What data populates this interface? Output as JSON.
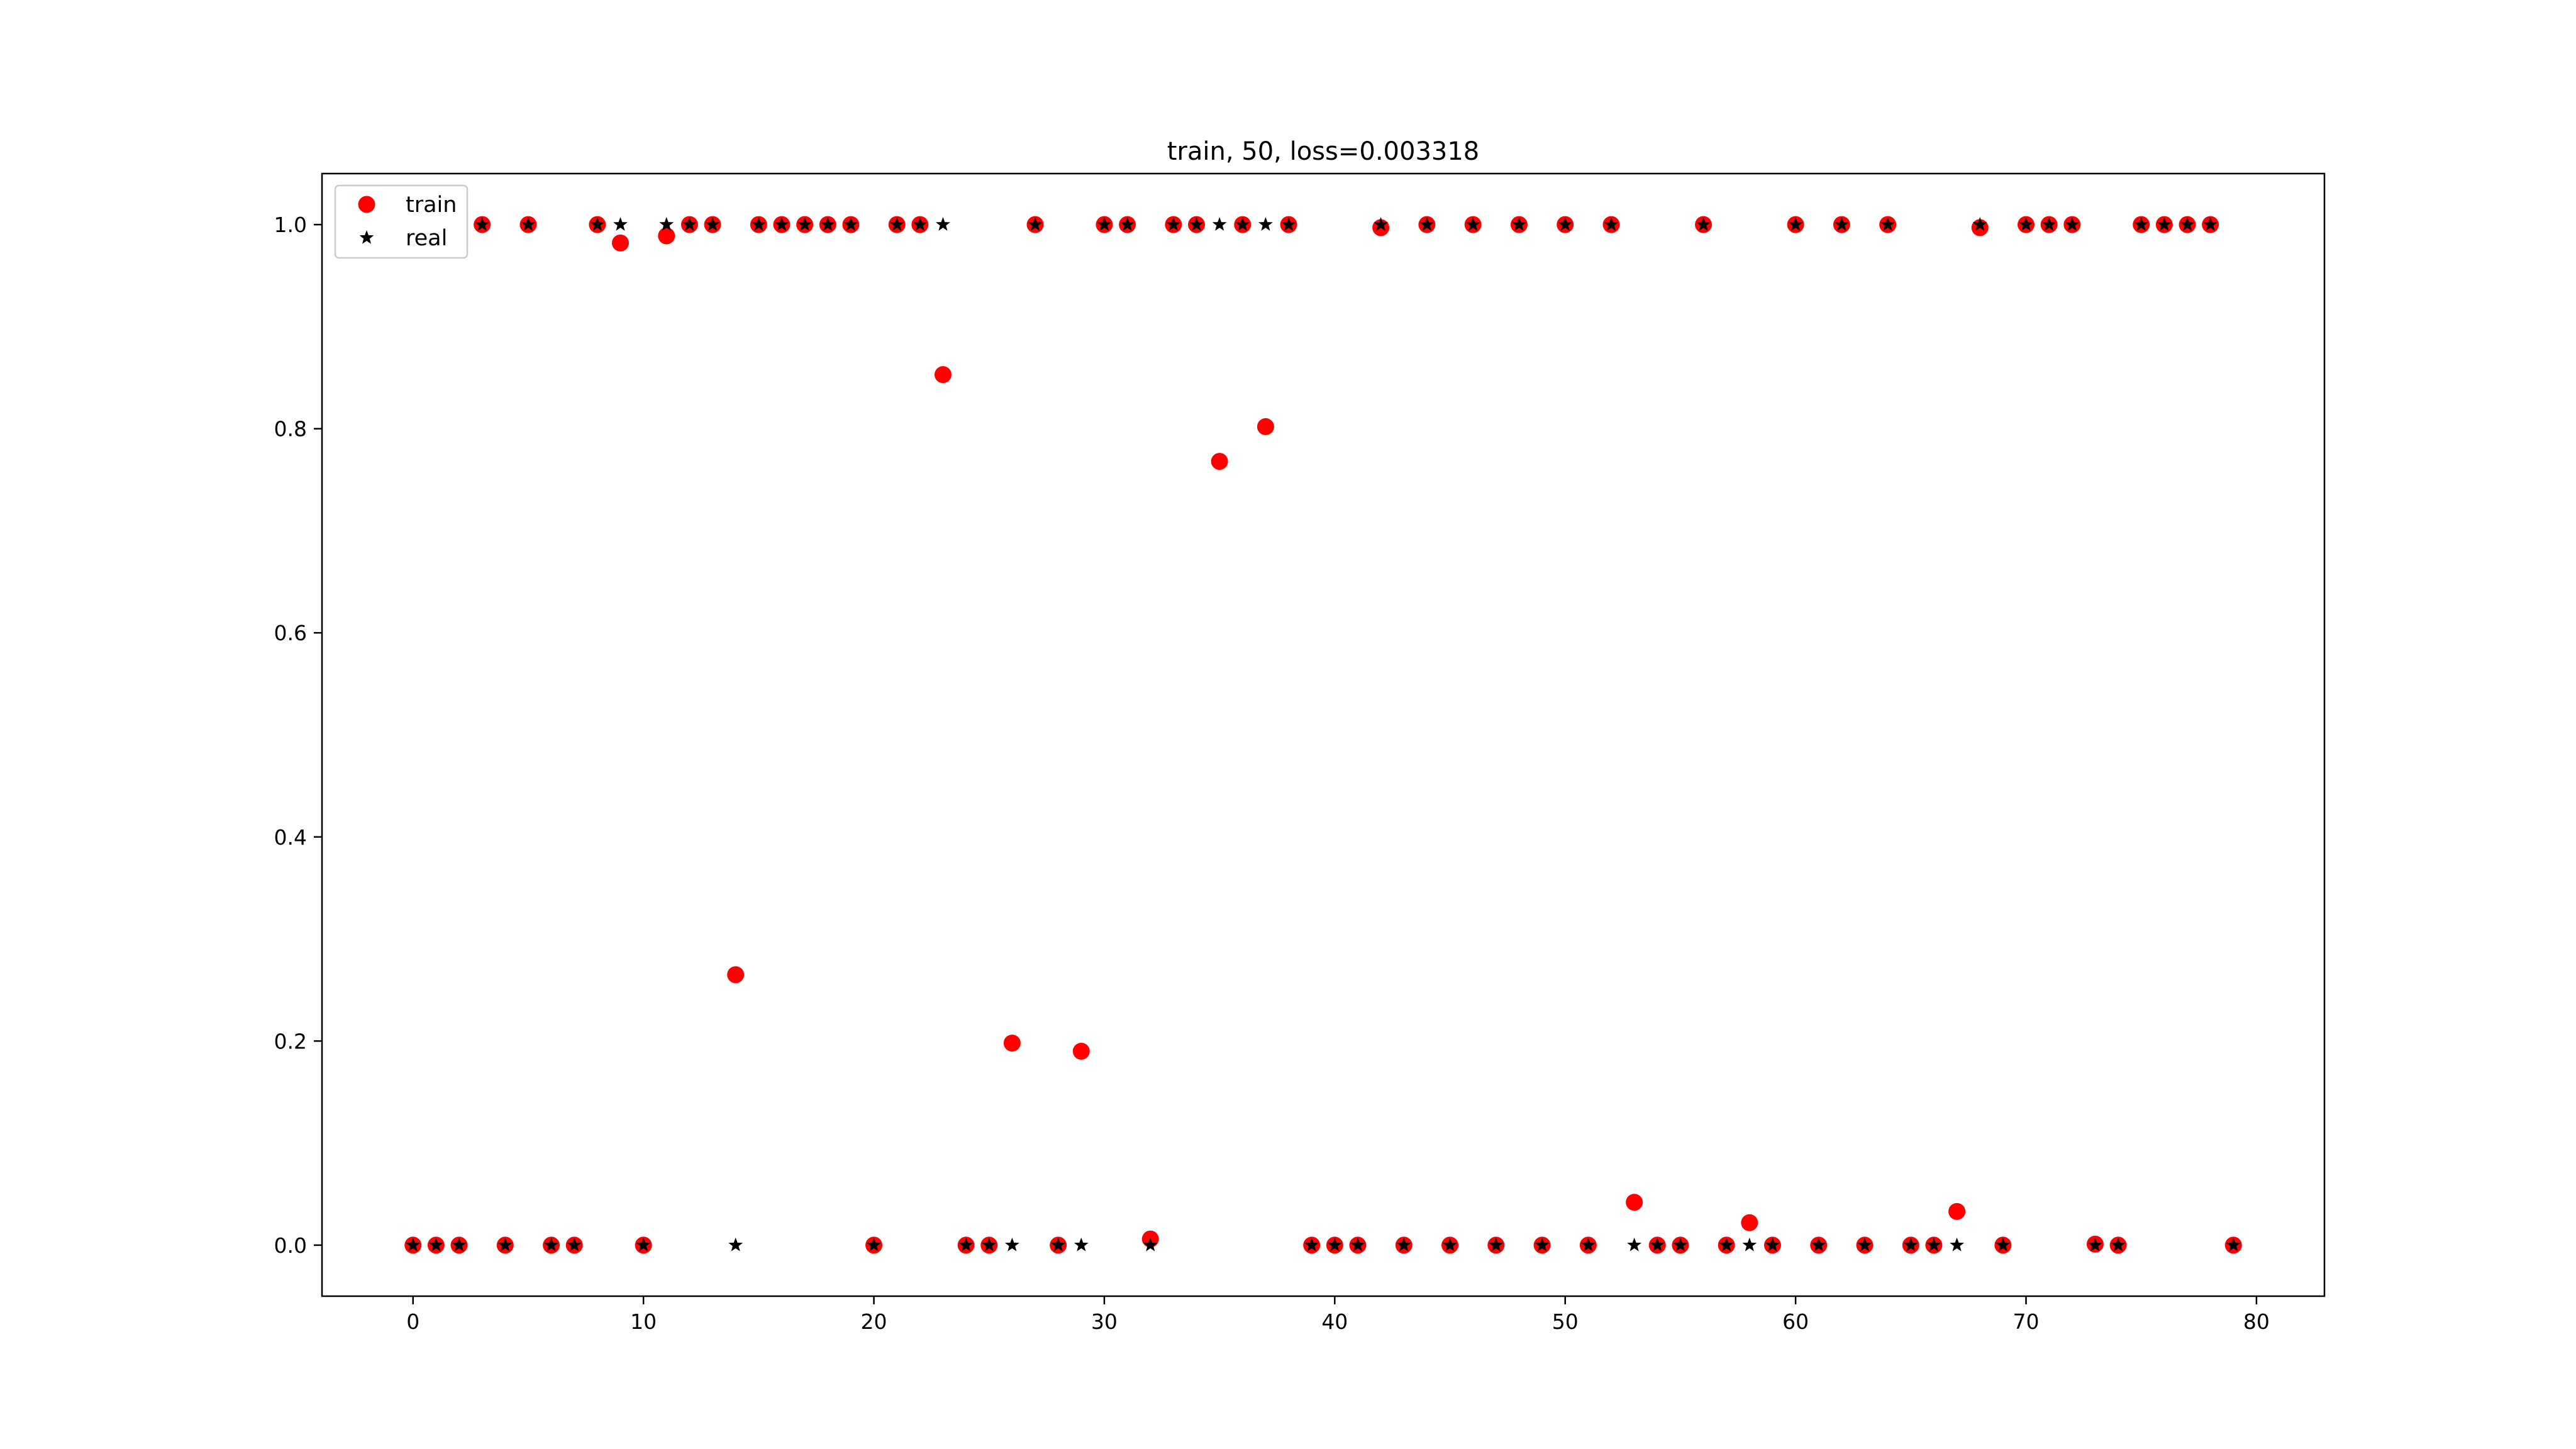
{
  "chart_data": {
    "type": "scatter",
    "title": "train, 50, loss=0.003318",
    "xlabel": "",
    "ylabel": "",
    "xlim": [
      -3.95,
      82.95
    ],
    "ylim": [
      -0.05,
      1.05
    ],
    "xticks": [
      0,
      10,
      20,
      30,
      40,
      50,
      60,
      70,
      80
    ],
    "yticks": [
      0.0,
      0.2,
      0.4,
      0.6,
      0.8,
      1.0
    ],
    "ytick_labels": [
      "0.0",
      "0.2",
      "0.4",
      "0.6",
      "0.8",
      "1.0"
    ],
    "grid": false,
    "legend_position": "upper-left",
    "x": [
      0,
      1,
      2,
      3,
      4,
      5,
      6,
      7,
      8,
      9,
      10,
      11,
      12,
      13,
      14,
      15,
      16,
      17,
      18,
      19,
      20,
      21,
      22,
      23,
      24,
      25,
      26,
      27,
      28,
      29,
      30,
      31,
      32,
      33,
      34,
      35,
      36,
      37,
      38,
      39,
      40,
      41,
      42,
      43,
      44,
      45,
      46,
      47,
      48,
      49,
      50,
      51,
      52,
      53,
      54,
      55,
      56,
      57,
      58,
      59,
      60,
      61,
      62,
      63,
      64,
      65,
      66,
      67,
      68,
      69,
      70,
      71,
      72,
      73,
      74,
      75,
      76,
      77,
      78,
      79
    ],
    "series": [
      {
        "name": "train",
        "marker": "circle",
        "color": "#ff0000",
        "values": [
          0,
          0,
          0,
          1,
          0,
          1,
          0,
          0,
          1,
          0.982,
          0,
          0.989,
          1,
          1,
          0.265,
          1,
          1,
          1,
          1,
          1,
          0,
          1,
          1,
          0.853,
          0,
          0,
          0.198,
          1,
          0,
          0.19,
          1,
          1,
          0.006,
          1,
          1,
          0.768,
          1,
          0.802,
          1,
          0,
          0,
          0,
          0.997,
          0,
          1,
          0,
          1,
          0,
          1,
          0,
          1,
          0,
          1,
          0.042,
          0,
          0,
          1,
          0,
          0.022,
          0,
          1,
          0,
          1,
          0,
          1,
          0,
          0,
          0.033,
          0.997,
          0,
          1,
          1,
          1,
          0.001,
          0,
          1,
          1,
          1,
          1,
          0
        ]
      },
      {
        "name": "real",
        "marker": "star",
        "color": "#000000",
        "values": [
          0,
          0,
          0,
          1,
          0,
          1,
          0,
          0,
          1,
          1,
          0,
          1,
          1,
          1,
          0,
          1,
          1,
          1,
          1,
          1,
          0,
          1,
          1,
          1,
          0,
          0,
          0,
          1,
          0,
          0,
          1,
          1,
          0,
          1,
          1,
          1,
          1,
          1,
          1,
          0,
          0,
          0,
          1,
          0,
          1,
          0,
          1,
          0,
          1,
          0,
          1,
          0,
          1,
          0,
          0,
          0,
          1,
          0,
          0,
          0,
          1,
          0,
          1,
          0,
          1,
          0,
          0,
          0,
          1,
          0,
          1,
          1,
          1,
          0,
          0,
          1,
          1,
          1,
          1,
          0
        ]
      }
    ]
  }
}
